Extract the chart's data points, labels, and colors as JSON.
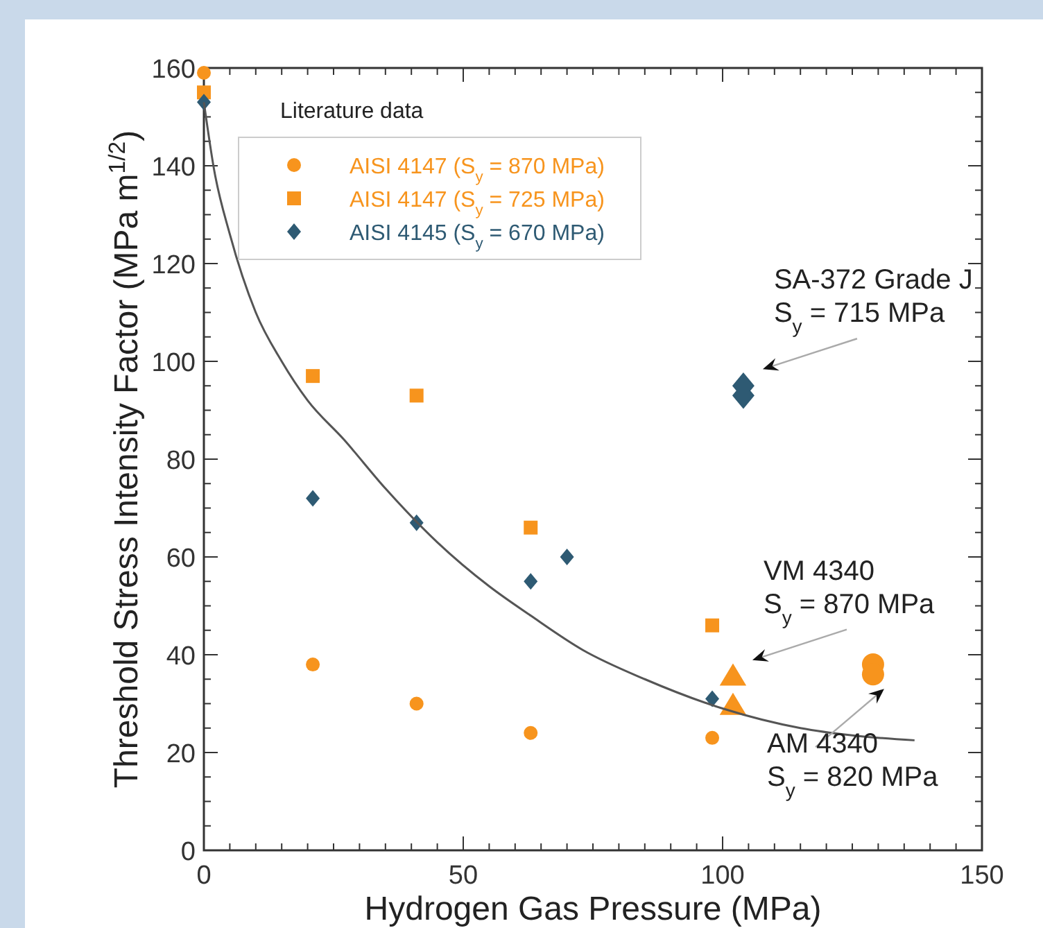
{
  "chart_data": {
    "type": "scatter",
    "xlabel": "Hydrogen Gas Pressure (MPa)",
    "ylabel": "Threshold Stress Intensity Factor (MPa m$^{1/2}$)",
    "legend_title": "Literature data",
    "legend": "top left",
    "xlim": [
      0,
      150
    ],
    "xticks": [
      0,
      50,
      100,
      150
    ],
    "ylim": [
      0,
      160
    ],
    "yticks": [
      0,
      20,
      40,
      60,
      80,
      100,
      120,
      140,
      160
    ],
    "grid": false,
    "series": [
      {
        "name": "AISI 4147 (S$_{y}$ = 870 MPa)",
        "color": "#f7941d",
        "marker": "circle",
        "x": [
          0,
          21,
          41,
          63,
          98
        ],
        "values": [
          159,
          38,
          30,
          24,
          23
        ]
      },
      {
        "name": "AISI 4147 (S$_{y}$ = 725 MPa)",
        "color": "#f7941d",
        "marker": "square",
        "x": [
          0,
          21,
          41,
          63,
          98
        ],
        "values": [
          155,
          97,
          93,
          66,
          46
        ]
      },
      {
        "name": "AISI 4145 (S$_{y}$ = 670 MPa)",
        "color": "#2e5a73",
        "marker": "diamond",
        "x": [
          0,
          21,
          41,
          63,
          70,
          98
        ],
        "values": [
          153,
          72,
          67,
          55,
          60,
          31
        ]
      },
      {
        "color": "#2e5a73",
        "marker": "diamond",
        "x": [
          104,
          104
        ],
        "values": [
          95,
          93
        ]
      },
      {
        "color": "#f7941d",
        "marker": "triangle",
        "x": [
          102,
          102
        ],
        "values": [
          35.5,
          29.5
        ]
      },
      {
        "color": "#f7941d",
        "marker": "circle",
        "x": [
          129,
          129
        ],
        "values": [
          38,
          36
        ]
      },
      {
        "type": "line",
        "color": "#555555",
        "marker": "none",
        "x": [
          0,
          2,
          5,
          10,
          15,
          20,
          27,
          35,
          45,
          55,
          63,
          73,
          85,
          100,
          115,
          125,
          137
        ],
        "values": [
          153,
          139,
          126,
          110,
          100,
          92,
          84,
          74,
          63,
          54,
          48,
          41,
          35,
          29,
          25,
          23.5,
          22.5
        ]
      }
    ],
    "annotations": [
      {
        "text": "SA-372 Grade J\nS$_{y}$ = 715 MPa",
        "x": 104,
        "y": 95
      },
      {
        "text": "VM 4340\nS$_{y}$ = 870 MPa",
        "x": 102,
        "y": 35.5
      },
      {
        "text": "AM 4340\nS$_{y}$ = 820 MPa",
        "x": 129,
        "y": 37
      }
    ]
  }
}
